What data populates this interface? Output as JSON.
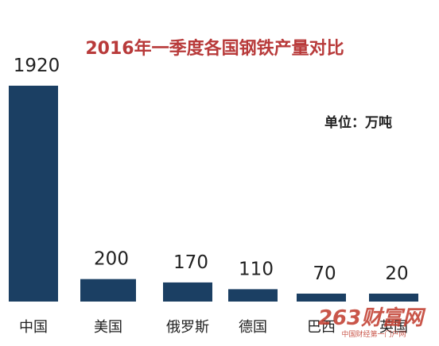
{
  "chart_data": {
    "type": "bar",
    "title": "2016年一季度各国钢铁产量对比",
    "unit_label": "单位：万吨",
    "categories": [
      "中国",
      "美国",
      "俄罗斯",
      "德国",
      "巴西",
      "英国"
    ],
    "values": [
      1920,
      200,
      170,
      110,
      70,
      20
    ],
    "xlabel": "",
    "ylabel": "",
    "ylim": [
      0,
      1920
    ],
    "grid": false,
    "legend": "none",
    "colors": {
      "bar": "#1b3f63",
      "title": "#b83a3a"
    }
  },
  "watermark": {
    "main": "263财富网",
    "sub": "中国财经第一门户网"
  }
}
